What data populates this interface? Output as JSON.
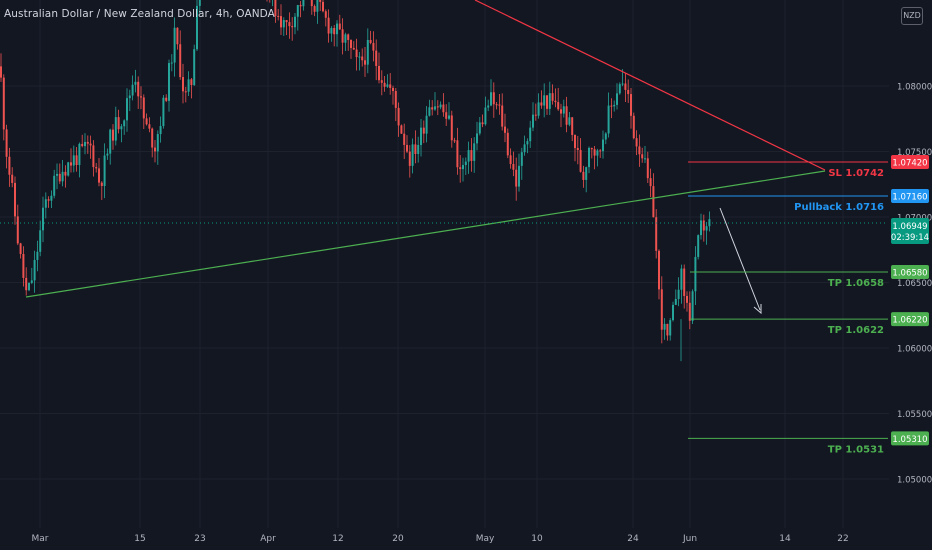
{
  "header": {
    "title": "Australian Dollar / New Zealand Dollar, 4h, OANDA",
    "currency": "NZD"
  },
  "colors": {
    "background": "#131722",
    "up": "#26a69a",
    "down": "#ef5350",
    "grid": "#1e222d",
    "axis_text": "#b2b5be",
    "resistance_line": "#f23645",
    "support_line": "#4caf50",
    "pullback_line": "#2196f3",
    "tp_line": "#4caf50",
    "price_badge": "#089981"
  },
  "chart_data": {
    "type": "candlestick",
    "symbol": "AUDNZD",
    "timeframe": "4h",
    "y_ticks": [
      "1.08000",
      "1.07500",
      "1.07000",
      "1.06500",
      "1.06000",
      "1.05500",
      "1.05000"
    ],
    "x_ticks": [
      "Mar",
      "15",
      "23",
      "Apr",
      "12",
      "20",
      "May",
      "10",
      "24",
      "Jun",
      "14",
      "22"
    ],
    "last_price": "1.06949",
    "countdown": "02:39:14",
    "grid": true,
    "levels": [
      {
        "id": "sl",
        "label": "SL 1.0742",
        "price": 1.0742,
        "axis": "1.07420",
        "kind": "stop"
      },
      {
        "id": "pullback",
        "label": "Pullback 1.0716",
        "price": 1.0716,
        "axis": "1.07160",
        "kind": "entry"
      },
      {
        "id": "tp1",
        "label": "TP 1.0658",
        "price": 1.0658,
        "axis": "1.06580",
        "kind": "target"
      },
      {
        "id": "tp2",
        "label": "TP 1.0622",
        "price": 1.0622,
        "axis": "1.06220",
        "kind": "target"
      },
      {
        "id": "tp3",
        "label": "TP 1.0531",
        "price": 1.0531,
        "axis": "1.05310",
        "kind": "target"
      }
    ],
    "path": [
      [
        0,
        1.0815
      ],
      [
        5,
        1.076
      ],
      [
        12,
        1.072
      ],
      [
        20,
        1.067
      ],
      [
        27,
        1.0638
      ],
      [
        34,
        1.066
      ],
      [
        45,
        1.071
      ],
      [
        60,
        1.0735
      ],
      [
        75,
        1.0745
      ],
      [
        90,
        1.0755
      ],
      [
        100,
        1.0725
      ],
      [
        112,
        1.0765
      ],
      [
        125,
        1.078
      ],
      [
        135,
        1.081
      ],
      [
        145,
        1.077
      ],
      [
        155,
        1.0755
      ],
      [
        165,
        1.079
      ],
      [
        175,
        1.084
      ],
      [
        185,
        1.079
      ],
      [
        192,
        1.0805
      ],
      [
        198,
        1.088
      ],
      [
        203,
        1.096
      ],
      [
        210,
        1.092
      ],
      [
        225,
        1.091
      ],
      [
        240,
        1.0915
      ],
      [
        255,
        1.09
      ],
      [
        265,
        1.088
      ],
      [
        275,
        1.086
      ],
      [
        285,
        1.0845
      ],
      [
        295,
        1.0855
      ],
      [
        305,
        1.087
      ],
      [
        318,
        1.086
      ],
      [
        330,
        1.0845
      ],
      [
        345,
        1.0835
      ],
      [
        358,
        1.0815
      ],
      [
        370,
        1.083
      ],
      [
        380,
        1.081
      ],
      [
        392,
        1.0795
      ],
      [
        400,
        1.077
      ],
      [
        410,
        1.0745
      ],
      [
        420,
        1.076
      ],
      [
        430,
        1.079
      ],
      [
        440,
        1.0785
      ],
      [
        450,
        1.077
      ],
      [
        460,
        1.0735
      ],
      [
        470,
        1.0745
      ],
      [
        480,
        1.077
      ],
      [
        490,
        1.079
      ],
      [
        500,
        1.078
      ],
      [
        510,
        1.0745
      ],
      [
        517,
        1.0725
      ],
      [
        525,
        1.076
      ],
      [
        535,
        1.078
      ],
      [
        545,
        1.079
      ],
      [
        555,
        1.0785
      ],
      [
        565,
        1.078
      ],
      [
        575,
        1.0755
      ],
      [
        583,
        1.073
      ],
      [
        590,
        1.076
      ],
      [
        598,
        1.0745
      ],
      [
        605,
        1.077
      ],
      [
        612,
        1.0785
      ],
      [
        620,
        1.0805
      ],
      [
        628,
        1.079
      ],
      [
        635,
        1.076
      ],
      [
        642,
        1.075
      ],
      [
        648,
        1.0725
      ],
      [
        655,
        1.07
      ],
      [
        657,
        1.0655
      ],
      [
        662,
        1.062
      ],
      [
        667,
        1.0605
      ],
      [
        672,
        1.062
      ],
      [
        677,
        1.065
      ],
      [
        681,
        1.0655
      ],
      [
        686,
        1.0635
      ],
      [
        690,
        1.0625
      ],
      [
        695,
        1.066
      ],
      [
        700,
        1.069
      ],
      [
        705,
        1.0695
      ],
      [
        710,
        1.0694
      ]
    ]
  }
}
